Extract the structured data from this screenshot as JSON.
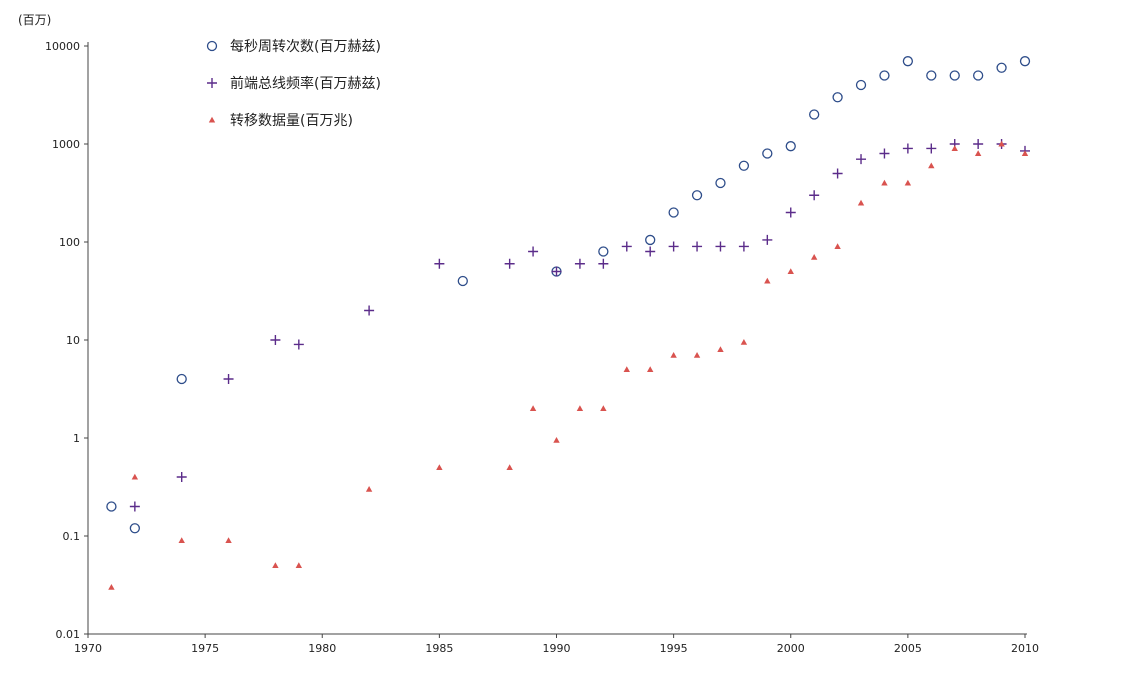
{
  "chart_data": {
    "type": "scatter",
    "y_unit_label": "(百万)",
    "y_scale": "log",
    "xlim": [
      1970,
      2010
    ],
    "ylim": [
      0.01,
      10000
    ],
    "x_ticks": [
      1970,
      1975,
      1980,
      1985,
      1990,
      1995,
      2000,
      2005,
      2010
    ],
    "y_ticks": [
      {
        "value": 0.01,
        "label": "0.01"
      },
      {
        "value": 0.1,
        "label": "0.1"
      },
      {
        "value": 1,
        "label": "1"
      },
      {
        "value": 10,
        "label": "10"
      },
      {
        "value": 100,
        "label": "100"
      },
      {
        "value": 1000,
        "label": "1000"
      },
      {
        "value": 10000,
        "label": "10000"
      }
    ],
    "grid": false,
    "legend_position": "top-left",
    "series": [
      {
        "name": "每秒周转次数(百万赫兹)",
        "marker": "circle",
        "color": "#2e4d8a",
        "points": [
          [
            1971,
            0.2
          ],
          [
            1972,
            0.12
          ],
          [
            1974,
            4
          ],
          [
            1986,
            40
          ],
          [
            1990,
            50
          ],
          [
            1992,
            80
          ],
          [
            1994,
            105
          ],
          [
            1995,
            200
          ],
          [
            1996,
            300
          ],
          [
            1997,
            400
          ],
          [
            1998,
            600
          ],
          [
            1999,
            800
          ],
          [
            2000,
            950
          ],
          [
            2001,
            2000
          ],
          [
            2002,
            3000
          ],
          [
            2003,
            4000
          ],
          [
            2004,
            5000
          ],
          [
            2005,
            7000
          ],
          [
            2006,
            5000
          ],
          [
            2007,
            5000
          ],
          [
            2008,
            5000
          ],
          [
            2009,
            6000
          ],
          [
            2010,
            7000
          ]
        ]
      },
      {
        "name": "前端总线频率(百万赫兹)",
        "marker": "plus",
        "color": "#5b2c8a",
        "points": [
          [
            1972,
            0.2
          ],
          [
            1974,
            0.4
          ],
          [
            1976,
            4
          ],
          [
            1978,
            10
          ],
          [
            1979,
            9
          ],
          [
            1982,
            20
          ],
          [
            1985,
            60
          ],
          [
            1988,
            60
          ],
          [
            1989,
            80
          ],
          [
            1990,
            50
          ],
          [
            1991,
            60
          ],
          [
            1992,
            60
          ],
          [
            1993,
            90
          ],
          [
            1994,
            80
          ],
          [
            1995,
            90
          ],
          [
            1996,
            90
          ],
          [
            1997,
            90
          ],
          [
            1998,
            90
          ],
          [
            1999,
            105
          ],
          [
            2000,
            200
          ],
          [
            2001,
            300
          ],
          [
            2002,
            500
          ],
          [
            2003,
            700
          ],
          [
            2004,
            800
          ],
          [
            2005,
            900
          ],
          [
            2006,
            900
          ],
          [
            2007,
            1000
          ],
          [
            2008,
            1000
          ],
          [
            2009,
            1000
          ],
          [
            2010,
            850
          ]
        ]
      },
      {
        "name": "转移数据量(百万兆)",
        "marker": "triangle",
        "color": "#d9534f",
        "points": [
          [
            1971,
            0.03
          ],
          [
            1972,
            0.4
          ],
          [
            1974,
            0.09
          ],
          [
            1976,
            0.09
          ],
          [
            1978,
            0.05
          ],
          [
            1979,
            0.05
          ],
          [
            1982,
            0.3
          ],
          [
            1985,
            0.5
          ],
          [
            1988,
            0.5
          ],
          [
            1989,
            2
          ],
          [
            1990,
            0.95
          ],
          [
            1991,
            2
          ],
          [
            1992,
            2
          ],
          [
            1993,
            5
          ],
          [
            1994,
            5
          ],
          [
            1995,
            7
          ],
          [
            1996,
            7
          ],
          [
            1997,
            8
          ],
          [
            1998,
            9.5
          ],
          [
            1999,
            40
          ],
          [
            2000,
            50
          ],
          [
            2001,
            70
          ],
          [
            2002,
            90
          ],
          [
            2003,
            250
          ],
          [
            2004,
            400
          ],
          [
            2005,
            400
          ],
          [
            2006,
            600
          ],
          [
            2007,
            900
          ],
          [
            2008,
            800
          ],
          [
            2009,
            1000
          ],
          [
            2010,
            800
          ]
        ]
      }
    ]
  }
}
